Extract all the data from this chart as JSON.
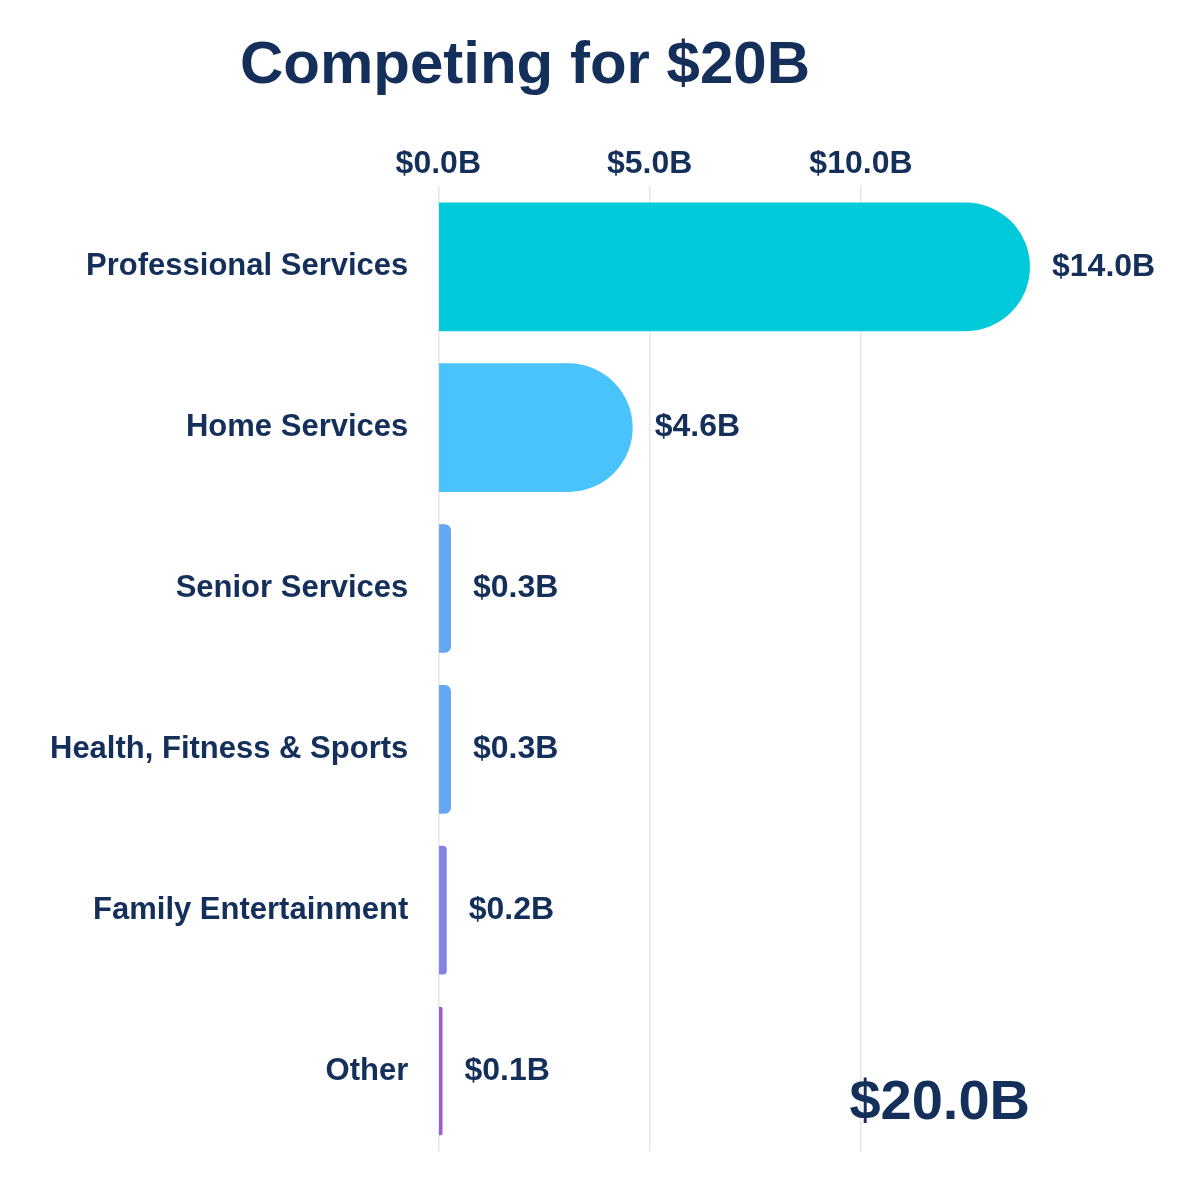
{
  "chart_data": {
    "type": "bar",
    "orientation": "horizontal",
    "title": "Competing for $20B",
    "categories": [
      "Professional Services",
      "Home Services",
      "Senior Services",
      "Health, Fitness & Sports",
      "Family Entertainment",
      "Other"
    ],
    "values": [
      14.0,
      4.6,
      0.3,
      0.3,
      0.2,
      0.1
    ],
    "colors": [
      "#00c9d9",
      "#4ac3fb",
      "#66a7f1",
      "#66a7f1",
      "#8383e3",
      "#9a5bcc"
    ],
    "value_labels": [
      "$14.0B",
      "$4.6B",
      "$0.3B",
      "$0.3B",
      "$0.2B",
      "$0.1B"
    ],
    "xlim": [
      0,
      14
    ],
    "xticks": [
      {
        "value": 0,
        "label": "$0.0B"
      },
      {
        "value": 5,
        "label": "$5.0B"
      },
      {
        "value": 10,
        "label": "$10.0B"
      }
    ],
    "grid": "x",
    "legend": false,
    "annotations": [
      "$20.0B"
    ]
  }
}
